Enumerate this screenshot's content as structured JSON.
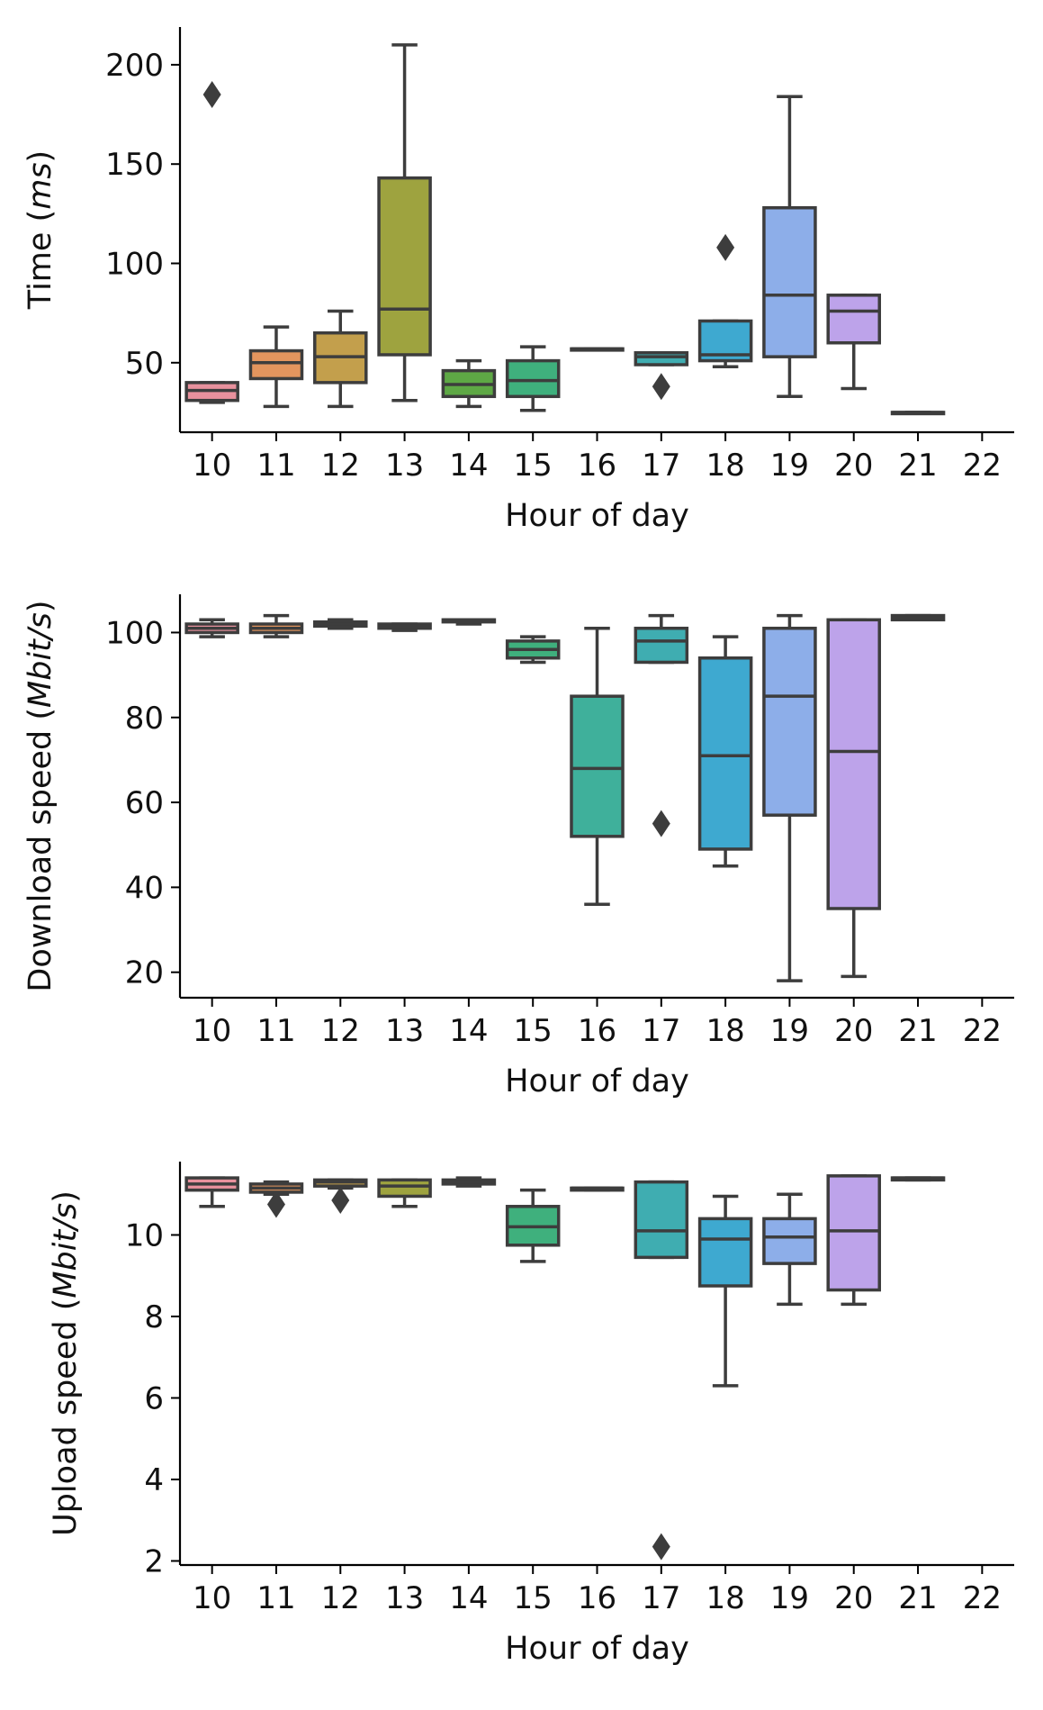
{
  "chart_data": [
    {
      "type": "box",
      "xlabel": "Hour of day",
      "ylabel_prefix": "Time (",
      "ylabel_italic": "ms",
      "ylabel_suffix": ")",
      "categories": [
        "10",
        "11",
        "12",
        "13",
        "14",
        "15",
        "16",
        "17",
        "18",
        "19",
        "20",
        "21",
        "22"
      ],
      "ylim": [
        15,
        219
      ],
      "yticks": [
        50,
        100,
        150,
        200
      ],
      "grid": false,
      "boxes": [
        {
          "category": "10",
          "color": "#e8919d",
          "whisker_low": 30,
          "q1": 31,
          "median": 36,
          "q3": 40,
          "whisker_high": 40,
          "outliers": [
            185
          ]
        },
        {
          "category": "11",
          "color": "#e3955e",
          "whisker_low": 28,
          "q1": 42,
          "median": 50,
          "q3": 56,
          "whisker_high": 68,
          "outliers": []
        },
        {
          "category": "12",
          "color": "#c39f4c",
          "whisker_low": 28,
          "q1": 40,
          "median": 53,
          "q3": 65,
          "whisker_high": 76,
          "outliers": []
        },
        {
          "category": "13",
          "color": "#9ea33f",
          "whisker_low": 31,
          "q1": 54,
          "median": 77,
          "q3": 143,
          "whisker_high": 210,
          "outliers": []
        },
        {
          "category": "14",
          "color": "#5ea845",
          "whisker_low": 28,
          "q1": 33,
          "median": 39,
          "q3": 46,
          "whisker_high": 51,
          "outliers": []
        },
        {
          "category": "15",
          "color": "#3fb07d",
          "whisker_low": 26,
          "q1": 33,
          "median": 41,
          "q3": 51,
          "whisker_high": 58,
          "outliers": []
        },
        {
          "category": "16",
          "color": "#3fb09b",
          "whisker_low": 57,
          "q1": 57,
          "median": 57,
          "q3": 57,
          "whisker_high": 57,
          "outliers": []
        },
        {
          "category": "17",
          "color": "#3fadb1",
          "whisker_low": 49,
          "q1": 49,
          "median": 53,
          "q3": 55,
          "whisker_high": 55,
          "outliers": [
            38
          ]
        },
        {
          "category": "18",
          "color": "#3ea9d0",
          "whisker_low": 48,
          "q1": 51,
          "median": 54,
          "q3": 71,
          "whisker_high": 71,
          "outliers": [
            108
          ]
        },
        {
          "category": "19",
          "color": "#8daee9",
          "whisker_low": 33,
          "q1": 53,
          "median": 84,
          "q3": 128,
          "whisker_high": 184,
          "outliers": []
        },
        {
          "category": "20",
          "color": "#bda3ea",
          "whisker_low": 37,
          "q1": 60,
          "median": 76,
          "q3": 84,
          "whisker_high": 84,
          "outliers": []
        },
        {
          "category": "21",
          "color": "#e3a3e8",
          "whisker_low": 25,
          "q1": 25,
          "median": 25,
          "q3": 25,
          "whisker_high": 25,
          "outliers": []
        }
      ]
    },
    {
      "type": "box",
      "xlabel": "Hour of day",
      "ylabel_prefix": "Download speed (",
      "ylabel_italic": "Mbit/s",
      "ylabel_suffix": ")",
      "categories": [
        "10",
        "11",
        "12",
        "13",
        "14",
        "15",
        "16",
        "17",
        "18",
        "19",
        "20",
        "21",
        "22"
      ],
      "ylim": [
        14,
        109
      ],
      "yticks": [
        20,
        40,
        60,
        80,
        100
      ],
      "grid": false,
      "boxes": [
        {
          "category": "10",
          "color": "#e8919d",
          "whisker_low": 99,
          "q1": 100,
          "median": 101,
          "q3": 102,
          "whisker_high": 103,
          "outliers": []
        },
        {
          "category": "11",
          "color": "#e3955e",
          "whisker_low": 99,
          "q1": 100,
          "median": 101,
          "q3": 102,
          "whisker_high": 104,
          "outliers": []
        },
        {
          "category": "12",
          "color": "#c39f4c",
          "whisker_low": 101,
          "q1": 101.5,
          "median": 102,
          "q3": 102.5,
          "whisker_high": 103,
          "outliers": []
        },
        {
          "category": "13",
          "color": "#9ea33f",
          "whisker_low": 100.5,
          "q1": 101,
          "median": 101.5,
          "q3": 102,
          "whisker_high": 102,
          "outliers": []
        },
        {
          "category": "14",
          "color": "#5ea845",
          "whisker_low": 102,
          "q1": 102.5,
          "median": 103,
          "q3": 103,
          "whisker_high": 103,
          "outliers": []
        },
        {
          "category": "15",
          "color": "#3fb07d",
          "whisker_low": 93,
          "q1": 94,
          "median": 96,
          "q3": 98,
          "whisker_high": 99,
          "outliers": []
        },
        {
          "category": "16",
          "color": "#3fb09b",
          "whisker_low": 36,
          "q1": 52,
          "median": 68,
          "q3": 85,
          "whisker_high": 101,
          "outliers": []
        },
        {
          "category": "17",
          "color": "#3fadb1",
          "whisker_low": 93,
          "q1": 93,
          "median": 98,
          "q3": 101,
          "whisker_high": 104,
          "outliers": [
            55
          ]
        },
        {
          "category": "18",
          "color": "#3ea9d0",
          "whisker_low": 45,
          "q1": 49,
          "median": 71,
          "q3": 94,
          "whisker_high": 99,
          "outliers": []
        },
        {
          "category": "19",
          "color": "#8daee9",
          "whisker_low": 18,
          "q1": 57,
          "median": 85,
          "q3": 101,
          "whisker_high": 104,
          "outliers": []
        },
        {
          "category": "20",
          "color": "#bda3ea",
          "whisker_low": 19,
          "q1": 35,
          "median": 72,
          "q3": 103,
          "whisker_high": 103,
          "outliers": []
        },
        {
          "category": "21",
          "color": "#e3a3e8",
          "whisker_low": 103,
          "q1": 103,
          "median": 103.5,
          "q3": 104,
          "whisker_high": 104,
          "outliers": []
        }
      ]
    },
    {
      "type": "box",
      "xlabel": "Hour of day",
      "ylabel_prefix": "Upload speed (",
      "ylabel_italic": "Mbit/s",
      "ylabel_suffix": ")",
      "categories": [
        "10",
        "11",
        "12",
        "13",
        "14",
        "15",
        "16",
        "17",
        "18",
        "19",
        "20",
        "21",
        "22"
      ],
      "ylim": [
        1.9,
        11.8
      ],
      "yticks": [
        2,
        4,
        6,
        8,
        10
      ],
      "grid": false,
      "boxes": [
        {
          "category": "10",
          "color": "#e8919d",
          "whisker_low": 10.7,
          "q1": 11.1,
          "median": 11.25,
          "q3": 11.4,
          "whisker_high": 11.4,
          "outliers": []
        },
        {
          "category": "11",
          "color": "#e3955e",
          "whisker_low": 11.0,
          "q1": 11.05,
          "median": 11.15,
          "q3": 11.25,
          "whisker_high": 11.3,
          "outliers": [
            10.75
          ]
        },
        {
          "category": "12",
          "color": "#c39f4c",
          "whisker_low": 11.15,
          "q1": 11.2,
          "median": 11.3,
          "q3": 11.35,
          "whisker_high": 11.35,
          "outliers": [
            10.85
          ]
        },
        {
          "category": "13",
          "color": "#9ea33f",
          "whisker_low": 10.7,
          "q1": 10.95,
          "median": 11.2,
          "q3": 11.35,
          "whisker_high": 11.35,
          "outliers": []
        },
        {
          "category": "14",
          "color": "#5ea845",
          "whisker_low": 11.2,
          "q1": 11.25,
          "median": 11.3,
          "q3": 11.35,
          "whisker_high": 11.4,
          "outliers": []
        },
        {
          "category": "15",
          "color": "#3fb07d",
          "whisker_low": 9.35,
          "q1": 9.75,
          "median": 10.2,
          "q3": 10.7,
          "whisker_high": 11.1,
          "outliers": []
        },
        {
          "category": "16",
          "color": "#3fb09b",
          "whisker_low": 11.1,
          "q1": 11.1,
          "median": 11.15,
          "q3": 11.15,
          "whisker_high": 11.15,
          "outliers": []
        },
        {
          "category": "17",
          "color": "#3fadb1",
          "whisker_low": 9.45,
          "q1": 9.45,
          "median": 10.1,
          "q3": 11.3,
          "whisker_high": 11.3,
          "outliers": [
            2.35
          ]
        },
        {
          "category": "18",
          "color": "#3ea9d0",
          "whisker_low": 6.3,
          "q1": 8.75,
          "median": 9.9,
          "q3": 10.4,
          "whisker_high": 10.95,
          "outliers": []
        },
        {
          "category": "19",
          "color": "#8daee9",
          "whisker_low": 8.3,
          "q1": 9.3,
          "median": 9.95,
          "q3": 10.4,
          "whisker_high": 11.0,
          "outliers": []
        },
        {
          "category": "20",
          "color": "#bda3ea",
          "whisker_low": 8.3,
          "q1": 8.65,
          "median": 10.1,
          "q3": 11.45,
          "whisker_high": 11.45,
          "outliers": []
        },
        {
          "category": "21",
          "color": "#e3a3e8",
          "whisker_low": 11.35,
          "q1": 11.35,
          "median": 11.4,
          "q3": 11.4,
          "whisker_high": 11.4,
          "outliers": []
        }
      ]
    }
  ]
}
